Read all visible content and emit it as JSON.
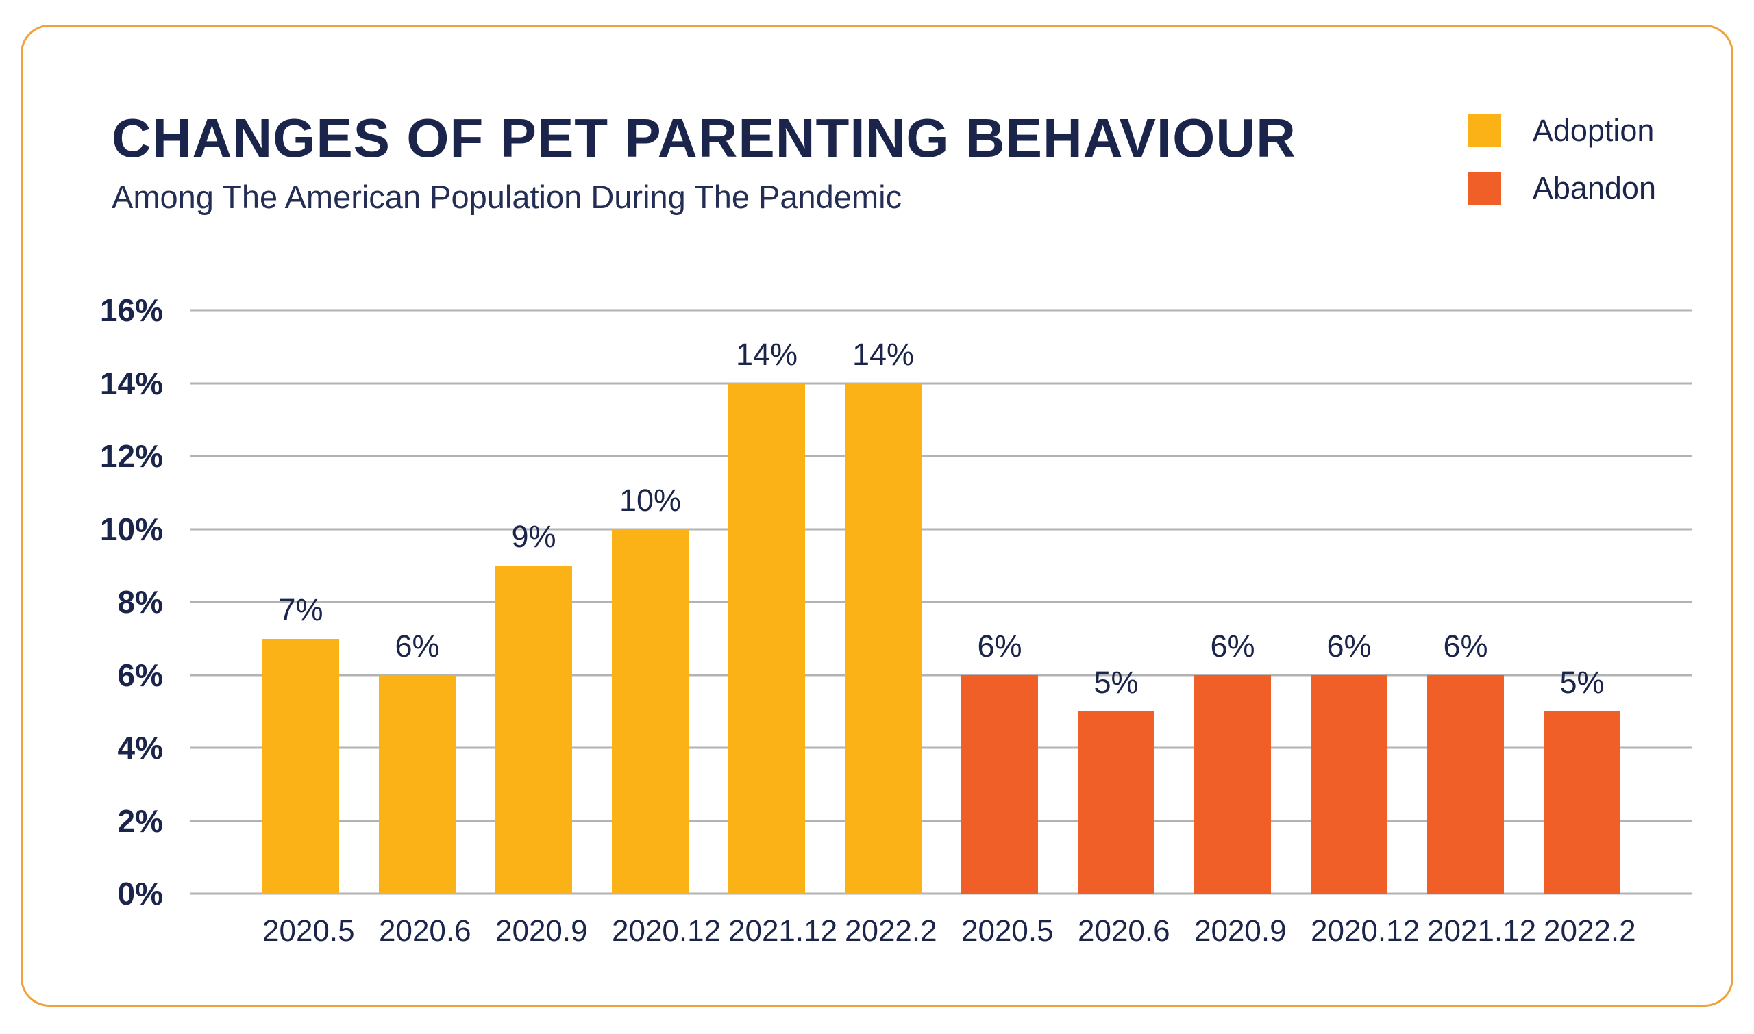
{
  "header": {
    "title": "CHANGES OF PET PARENTING BEHAVIOUR",
    "subtitle": "Among The American Population During The Pandemic"
  },
  "legend": [
    {
      "label": "Adoption",
      "color": "#FBB217"
    },
    {
      "label": "Abandon",
      "color": "#F15F28"
    }
  ],
  "colors": {
    "card_border": "#F0A13B",
    "text_navy": "#1B254B",
    "gridline": "#B3B3B3",
    "adoption_yellow": "#FBB217",
    "abandon_orange": "#F15F28"
  },
  "chart_data": {
    "type": "bar",
    "title": "CHANGES OF PET PARENTING BEHAVIOUR",
    "subtitle": "Among The American Population During The Pandemic",
    "categories": [
      "2020.5",
      "2020.6",
      "2020.9",
      "2020.12",
      "2021.12",
      "2022.2"
    ],
    "series": [
      {
        "name": "Adoption",
        "color": "#FBB217",
        "values": [
          7,
          6,
          9,
          10,
          14,
          14
        ]
      },
      {
        "name": "Abandon",
        "color": "#F15F28",
        "values": [
          6,
          5,
          6,
          6,
          6,
          5
        ]
      }
    ],
    "value_label_format": "{v}%",
    "ylabel": "",
    "xlabel": "",
    "ylim": [
      0,
      16
    ],
    "ytick_step": 2,
    "ytick_labels": [
      "0%",
      "2%",
      "4%",
      "6%",
      "8%",
      "10%",
      "12%",
      "14%",
      "16%"
    ],
    "grid": true,
    "legend_position": "top-right"
  }
}
